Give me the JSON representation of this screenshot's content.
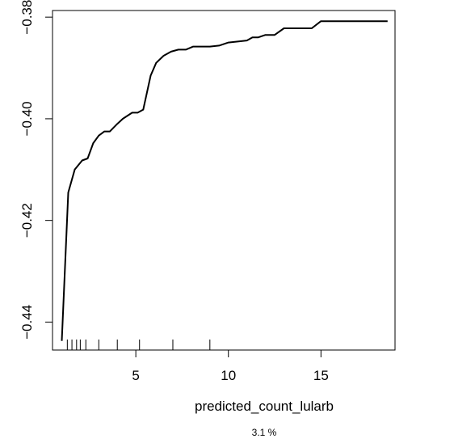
{
  "chart_data": {
    "type": "line",
    "title": "",
    "xlabel": "predicted_count_lularb",
    "subtitle": "3.1 %",
    "ylabel": "",
    "xlim": [
      0.5,
      19.0
    ],
    "ylim": [
      -0.4455,
      -0.3787
    ],
    "x_ticks": [
      5,
      10,
      15
    ],
    "x_tick_labels": [
      "5",
      "10",
      "15"
    ],
    "y_ticks": [
      -0.44,
      -0.42,
      -0.4,
      -0.38
    ],
    "y_tick_labels": [
      "-0.44",
      "-0.42",
      "-0.40",
      "-0.38"
    ],
    "grid": false,
    "legend": "none",
    "line_color": "#000000",
    "series": [
      {
        "x": [
          1.0,
          1.35,
          1.7,
          2.1,
          2.4,
          2.7,
          3.0,
          3.3,
          3.6,
          4.0,
          4.3,
          4.8,
          5.1,
          5.4,
          5.8,
          6.1,
          6.5,
          6.9,
          7.3,
          7.7,
          8.1,
          8.5,
          9.0,
          9.5,
          10.0,
          10.5,
          11.0,
          11.3,
          11.6,
          12.0,
          12.5,
          13.0,
          13.5,
          14.0,
          14.5,
          15.0,
          15.5,
          16.5,
          17.5,
          18.6
        ],
        "y": [
          -0.4437,
          -0.4145,
          -0.41,
          -0.4082,
          -0.4078,
          -0.4048,
          -0.4033,
          -0.4025,
          -0.4025,
          -0.401,
          -0.4,
          -0.3988,
          -0.3988,
          -0.3982,
          -0.3915,
          -0.389,
          -0.3876,
          -0.3868,
          -0.3864,
          -0.3864,
          -0.3858,
          -0.3858,
          -0.3858,
          -0.3856,
          -0.385,
          -0.3848,
          -0.3846,
          -0.384,
          -0.384,
          -0.3835,
          -0.3835,
          -0.3822,
          -0.3822,
          -0.3822,
          -0.3822,
          -0.3808,
          -0.3808,
          -0.3808,
          -0.3808,
          -0.3808
        ]
      }
    ],
    "rug_x": [
      1.3,
      1.55,
      1.8,
      2.0,
      2.3,
      3.0,
      4.0,
      5.2,
      7.0,
      9.0
    ]
  }
}
